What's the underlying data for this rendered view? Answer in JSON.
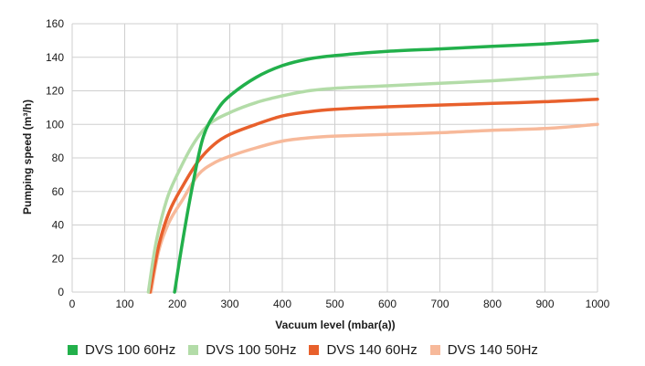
{
  "chart_data": {
    "type": "line",
    "xlabel": "Vacuum level (mbar(a))",
    "ylabel": "Pumping speed (m³/h)",
    "xlim": [
      0,
      1000
    ],
    "ylim": [
      0,
      160
    ],
    "x_ticks": [
      0,
      100,
      200,
      300,
      400,
      500,
      600,
      700,
      800,
      900,
      1000
    ],
    "y_ticks": [
      0,
      20,
      40,
      60,
      80,
      100,
      120,
      140,
      160
    ],
    "grid": true,
    "legend_position": "bottom",
    "series": [
      {
        "name": "DVS 100 60Hz",
        "color": "#22b04b",
        "points": [
          [
            195,
            0
          ],
          [
            210,
            30
          ],
          [
            230,
            65
          ],
          [
            250,
            93
          ],
          [
            275,
            108
          ],
          [
            300,
            117
          ],
          [
            350,
            128
          ],
          [
            400,
            135
          ],
          [
            450,
            139
          ],
          [
            500,
            141
          ],
          [
            600,
            143.5
          ],
          [
            700,
            145
          ],
          [
            800,
            146.5
          ],
          [
            900,
            148
          ],
          [
            1000,
            150
          ]
        ]
      },
      {
        "name": "DVS 100 50Hz",
        "color": "#b3dca8",
        "points": [
          [
            145,
            0
          ],
          [
            160,
            30
          ],
          [
            180,
            55
          ],
          [
            200,
            70
          ],
          [
            230,
            88
          ],
          [
            260,
            100
          ],
          [
            300,
            107
          ],
          [
            350,
            113
          ],
          [
            400,
            117
          ],
          [
            450,
            120
          ],
          [
            500,
            121.5
          ],
          [
            600,
            123
          ],
          [
            700,
            124.5
          ],
          [
            800,
            126
          ],
          [
            900,
            128
          ],
          [
            1000,
            130
          ]
        ]
      },
      {
        "name": "DVS 140 60Hz",
        "color": "#e8602c",
        "points": [
          [
            148,
            0
          ],
          [
            165,
            28
          ],
          [
            185,
            48
          ],
          [
            210,
            63
          ],
          [
            240,
            78
          ],
          [
            270,
            88
          ],
          [
            300,
            94
          ],
          [
            350,
            100
          ],
          [
            400,
            105
          ],
          [
            450,
            107.5
          ],
          [
            500,
            109
          ],
          [
            600,
            110.5
          ],
          [
            700,
            111.5
          ],
          [
            800,
            112.5
          ],
          [
            900,
            113.5
          ],
          [
            1000,
            115
          ]
        ]
      },
      {
        "name": "DVS 140 50Hz",
        "color": "#f7b99a",
        "points": [
          [
            150,
            0
          ],
          [
            165,
            25
          ],
          [
            185,
            42
          ],
          [
            210,
            55
          ],
          [
            240,
            70
          ],
          [
            270,
            77
          ],
          [
            300,
            81
          ],
          [
            350,
            86
          ],
          [
            400,
            90
          ],
          [
            450,
            92
          ],
          [
            500,
            93
          ],
          [
            600,
            94
          ],
          [
            700,
            95
          ],
          [
            800,
            96.5
          ],
          [
            900,
            97.5
          ],
          [
            1000,
            100
          ]
        ]
      }
    ]
  }
}
